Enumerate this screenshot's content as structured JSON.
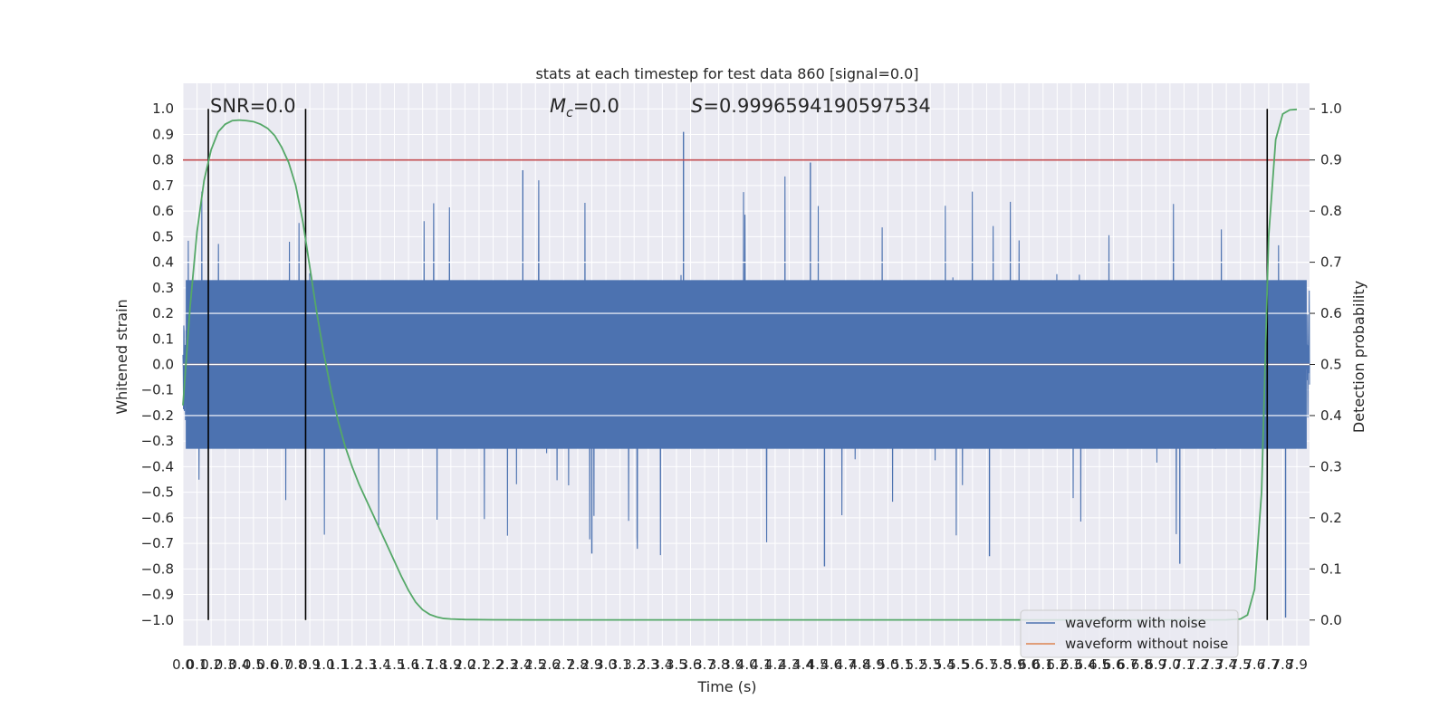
{
  "chart_data": {
    "type": "line",
    "title": "stats at each timestep for test data 860 [signal=0.0]",
    "xlabel": "Time (s)",
    "ylabel": "Whitened strain",
    "y2label": "Detection probability",
    "xlim": [
      0.0,
      7.99
    ],
    "ylim": [
      -1.1,
      1.1
    ],
    "y2lim": [
      -0.05,
      1.05
    ],
    "grid": true,
    "x_ticks": [
      "0.0",
      "0.1",
      "0.2",
      "0.3",
      "0.4",
      "0.5",
      "0.6",
      "0.7",
      "0.8",
      "0.9",
      "1.0",
      "1.1",
      "1.2",
      "1.3",
      "1.4",
      "1.5",
      "1.6",
      "1.7",
      "1.8",
      "1.9",
      "2.0",
      "2.1",
      "2.2",
      "2.3",
      "2.4",
      "2.5",
      "2.6",
      "2.7",
      "2.8",
      "2.9",
      "3.0",
      "3.1",
      "3.2",
      "3.3",
      "3.4",
      "3.5",
      "3.6",
      "3.7",
      "3.8",
      "3.9",
      "4.0",
      "4.1",
      "4.2",
      "4.3",
      "4.4",
      "4.5",
      "4.6",
      "4.7",
      "4.8",
      "4.9",
      "5.0",
      "5.1",
      "5.2",
      "5.3",
      "5.4",
      "5.5",
      "5.6",
      "5.7",
      "5.8",
      "5.9",
      "6.0",
      "6.1",
      "6.2",
      "6.3",
      "6.4",
      "6.5",
      "6.6",
      "6.7",
      "6.8",
      "6.9",
      "7.0",
      "7.1",
      "7.2",
      "7.3",
      "7.4",
      "7.5",
      "7.6",
      "7.7",
      "7.8",
      "7.9"
    ],
    "y_ticks": [
      "1.0",
      "0.9",
      "0.8",
      "0.7",
      "0.6",
      "0.5",
      "0.4",
      "0.3",
      "0.2",
      "0.1",
      "0.0",
      "−0.1",
      "−0.2",
      "−0.3",
      "−0.4",
      "−0.5",
      "−0.6",
      "−0.7",
      "−0.8",
      "−0.9",
      "−1.0"
    ],
    "y2_ticks": [
      "1.0",
      "0.9",
      "0.8",
      "0.7",
      "0.6",
      "0.5",
      "0.4",
      "0.3",
      "0.2",
      "0.1",
      "0.0"
    ],
    "annotations": {
      "snr": "SNR=0.0",
      "mc_symbol": "M",
      "mc_sub": "c",
      "mc_value": "=0.0",
      "s_symbol": "S",
      "s_value": "=0.9996594190597534"
    },
    "threshold_line": {
      "axis": "y2",
      "value": 0.9,
      "color": "#c44e52"
    },
    "vertical_lines": [
      0.18,
      0.87,
      7.69
    ],
    "series": [
      {
        "name": "waveform with noise",
        "axis": "y",
        "color": "#4c72b0",
        "description_note": "dense noise roughly within ±0.35 with spikes up to ±0.9",
        "noise_amplitude": 0.33,
        "max_value": 0.91,
        "min_value": -0.99,
        "samples": 4000
      },
      {
        "name": "waveform without noise",
        "axis": "y",
        "color": "#dd8452",
        "constant_value": 0.0
      },
      {
        "name": "",
        "axis": "y2",
        "color": "#55a868",
        "x": [
          0.0,
          0.05,
          0.1,
          0.15,
          0.2,
          0.25,
          0.3,
          0.35,
          0.4,
          0.45,
          0.5,
          0.55,
          0.6,
          0.65,
          0.7,
          0.75,
          0.8,
          0.85,
          0.9,
          0.95,
          1.0,
          1.05,
          1.1,
          1.15,
          1.2,
          1.25,
          1.3,
          1.35,
          1.4,
          1.45,
          1.5,
          1.55,
          1.6,
          1.65,
          1.7,
          1.75,
          1.8,
          1.85,
          1.9,
          2.0,
          2.2,
          2.5,
          3.0,
          4.0,
          5.0,
          6.0,
          7.0,
          7.4,
          7.5,
          7.55,
          7.6,
          7.65,
          7.7,
          7.75,
          7.8,
          7.85,
          7.9
        ],
        "y": [
          0.42,
          0.61,
          0.76,
          0.86,
          0.92,
          0.955,
          0.97,
          0.977,
          0.978,
          0.977,
          0.975,
          0.97,
          0.962,
          0.948,
          0.925,
          0.895,
          0.85,
          0.78,
          0.69,
          0.6,
          0.52,
          0.45,
          0.39,
          0.34,
          0.3,
          0.265,
          0.235,
          0.205,
          0.175,
          0.145,
          0.115,
          0.085,
          0.058,
          0.035,
          0.02,
          0.011,
          0.006,
          0.003,
          0.002,
          0.001,
          0.0005,
          0.0003,
          0.0002,
          0.0002,
          0.0002,
          0.0002,
          0.0002,
          0.0005,
          0.002,
          0.01,
          0.06,
          0.25,
          0.75,
          0.94,
          0.99,
          0.998,
          0.999
        ]
      }
    ],
    "legend": {
      "placement": "lower-right",
      "entries": [
        {
          "label": "waveform with noise",
          "color": "#4c72b0"
        },
        {
          "label": "waveform without noise",
          "color": "#dd8452"
        }
      ]
    },
    "colors": {
      "plot_background": "#eaeaf2",
      "grid": "#ffffff",
      "vertical_line": "#000000",
      "text": "#262626"
    }
  }
}
